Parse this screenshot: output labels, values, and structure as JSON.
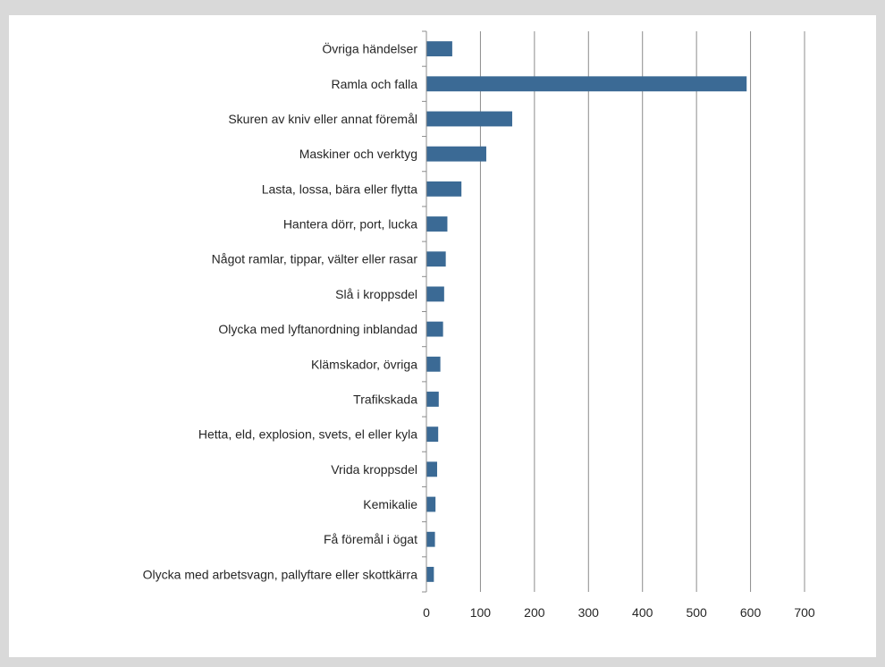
{
  "chart_data": {
    "type": "bar",
    "orientation": "horizontal",
    "title": "",
    "xlabel": "",
    "ylabel": "",
    "categories": [
      "Övriga händelser",
      "Ramla och falla",
      "Skuren av kniv eller annat föremål",
      "Maskiner och verktyg",
      "Lasta, lossa, bära eller flytta",
      "Hantera dörr, port, lucka",
      "Något ramlar, tippar, välter eller rasar",
      "Slå i kroppsdel",
      "Olycka med lyftanordning inblandad",
      "Klämskador, övriga",
      "Trafikskada",
      "Hetta, eld, explosion, svets, el eller kyla",
      "Vrida kroppsdel",
      "Kemikalie",
      "Få föremål i ögat",
      "Olycka med arbetsvagn, pallyftare eller skottkärra"
    ],
    "values": [
      47,
      592,
      158,
      110,
      64,
      38,
      35,
      32,
      30,
      25,
      22,
      21,
      19,
      16,
      15,
      13
    ],
    "xlim": [
      0,
      700
    ],
    "xticks": [
      "0",
      "100",
      "200",
      "300",
      "400",
      "500",
      "600",
      "700"
    ],
    "grid": true,
    "bar_color": "#3b6a95"
  }
}
